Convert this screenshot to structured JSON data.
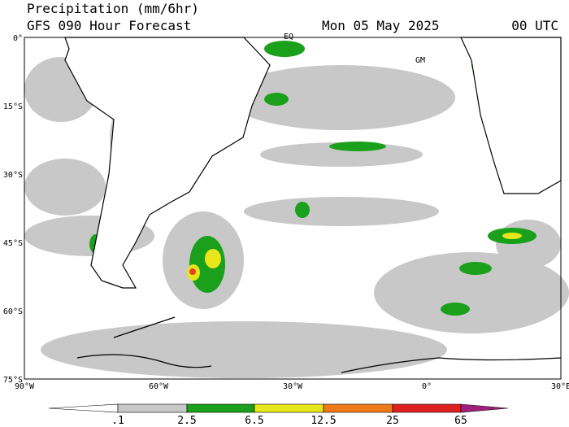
{
  "header": {
    "title": "Precipitation (mm/6hr)",
    "subtitle": "GFS 090 Hour Forecast",
    "date": "Mon 05 May 2025",
    "time": "00 UTC"
  },
  "map": {
    "lat_labels": [
      "0°",
      "15°S",
      "30°S",
      "45°S",
      "60°S",
      "75°S"
    ],
    "lon_labels": [
      "90°W",
      "60°W",
      "30°W",
      "0°",
      "30°E"
    ],
    "annotations": [
      "EQ",
      "GM"
    ]
  },
  "colorbar": {
    "labels": [
      ".1",
      "2.5",
      "6.5",
      "12.5",
      "25",
      "65"
    ]
  }
}
